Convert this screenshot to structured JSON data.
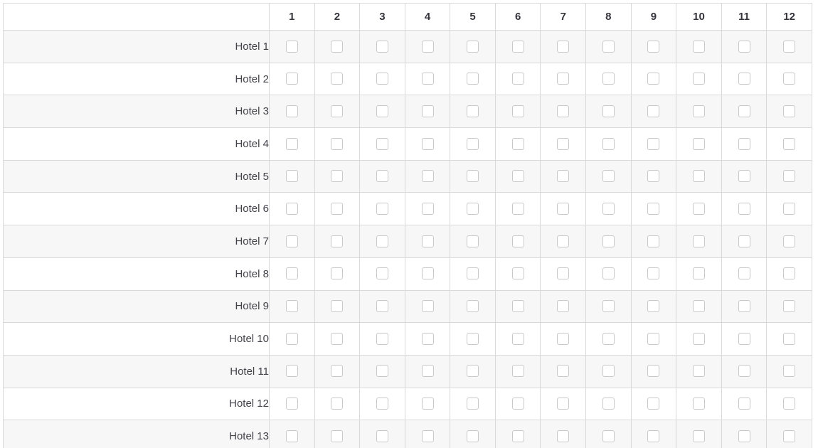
{
  "matrix": {
    "columns": [
      "1",
      "2",
      "3",
      "4",
      "5",
      "6",
      "7",
      "8",
      "9",
      "10",
      "11",
      "12"
    ],
    "rows": [
      {
        "label": "Hotel 1",
        "values": [
          false,
          false,
          false,
          false,
          false,
          false,
          false,
          false,
          false,
          false,
          false,
          false
        ]
      },
      {
        "label": "Hotel 2",
        "values": [
          false,
          false,
          false,
          false,
          false,
          false,
          false,
          false,
          false,
          false,
          false,
          false
        ]
      },
      {
        "label": "Hotel 3",
        "values": [
          false,
          false,
          false,
          false,
          false,
          false,
          false,
          false,
          false,
          false,
          false,
          false
        ]
      },
      {
        "label": "Hotel 4",
        "values": [
          false,
          false,
          false,
          false,
          false,
          false,
          false,
          false,
          false,
          false,
          false,
          false
        ]
      },
      {
        "label": "Hotel 5",
        "values": [
          false,
          false,
          false,
          false,
          false,
          false,
          false,
          false,
          false,
          false,
          false,
          false
        ]
      },
      {
        "label": "Hotel 6",
        "values": [
          false,
          false,
          false,
          false,
          false,
          false,
          false,
          false,
          false,
          false,
          false,
          false
        ]
      },
      {
        "label": "Hotel 7",
        "values": [
          false,
          false,
          false,
          false,
          false,
          false,
          false,
          false,
          false,
          false,
          false,
          false
        ]
      },
      {
        "label": "Hotel 8",
        "values": [
          false,
          false,
          false,
          false,
          false,
          false,
          false,
          false,
          false,
          false,
          false,
          false
        ]
      },
      {
        "label": "Hotel 9",
        "values": [
          false,
          false,
          false,
          false,
          false,
          false,
          false,
          false,
          false,
          false,
          false,
          false
        ]
      },
      {
        "label": "Hotel 10",
        "values": [
          false,
          false,
          false,
          false,
          false,
          false,
          false,
          false,
          false,
          false,
          false,
          false
        ]
      },
      {
        "label": "Hotel 11",
        "values": [
          false,
          false,
          false,
          false,
          false,
          false,
          false,
          false,
          false,
          false,
          false,
          false
        ]
      },
      {
        "label": "Hotel 12",
        "values": [
          false,
          false,
          false,
          false,
          false,
          false,
          false,
          false,
          false,
          false,
          false,
          false
        ]
      },
      {
        "label": "Hotel 13",
        "values": [
          false,
          false,
          false,
          false,
          false,
          false,
          false,
          false,
          false,
          false,
          false,
          false
        ]
      }
    ]
  }
}
